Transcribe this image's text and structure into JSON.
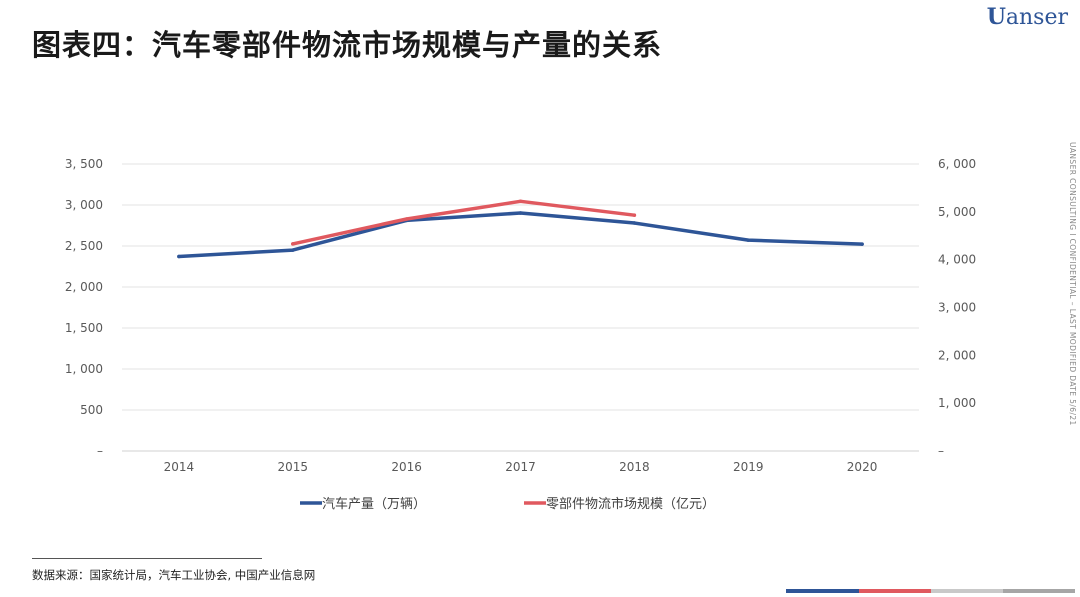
{
  "header": {
    "title": "图表四：汽车零部件物流市场规模与产量的关系",
    "logo_mark": "U",
    "logo_text": "anser"
  },
  "side_note": "UANSER CONSULTING  I  CONFIDENTIAL – LAST MODIFIED DATE 5/6/21",
  "chart_data": {
    "type": "line",
    "title": "",
    "categories": [
      "2014",
      "2015",
      "2016",
      "2017",
      "2018",
      "2019",
      "2020"
    ],
    "left_axis": {
      "ylim": [
        0,
        3500
      ],
      "ticks": [
        "–",
        "500",
        "1, 000",
        "1, 500",
        "2, 000",
        "2, 500",
        "3, 000",
        "3, 500"
      ],
      "tick_values": [
        0,
        500,
        1000,
        1500,
        2000,
        2500,
        3000,
        3500
      ]
    },
    "right_axis": {
      "ylim": [
        0,
        6000
      ],
      "ticks": [
        "–",
        "1, 000",
        "2, 000",
        "3, 000",
        "4, 000",
        "5, 000",
        "6, 000"
      ],
      "tick_values": [
        0,
        1000,
        2000,
        3000,
        4000,
        5000,
        6000
      ]
    },
    "series": [
      {
        "name": "汽车产量（万辆）",
        "axis": "left",
        "color": "#2e5597",
        "values": [
          2372,
          2450,
          2812,
          2902,
          2781,
          2572,
          2523
        ]
      },
      {
        "name": "零部件物流市场规模（亿元）",
        "axis": "right",
        "color": "#e0595f",
        "values": [
          null,
          4330,
          4850,
          5220,
          4930,
          null,
          null
        ]
      }
    ],
    "legend_position": "bottom-center"
  },
  "footer": {
    "source": "数据来源：国家统计局，汽车工业协会, 中国产业信息网",
    "bar_colors": [
      "#2e5597",
      "#e0595f",
      "#c9c9c9",
      "#a6a6a6"
    ]
  }
}
